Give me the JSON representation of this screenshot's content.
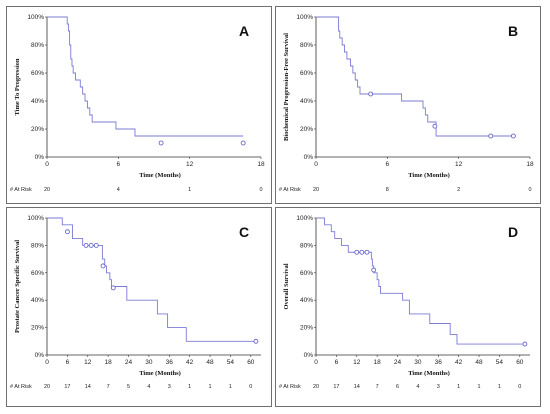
{
  "colors": {
    "curve": "#7b7bd6",
    "censor": "#5555cc",
    "axis": "#333333",
    "panel_border": "#707070"
  },
  "chart_data": [
    {
      "type": "line",
      "letter": "A",
      "ylabel": "Time To Progression",
      "xlabel": "Time (Months)",
      "xlim": [
        0,
        18
      ],
      "xticks": [
        0,
        6,
        12,
        18
      ],
      "ylim": [
        0,
        100
      ],
      "yticks": [
        "0%",
        "20%",
        "40%",
        "60%",
        "80%",
        "100%"
      ],
      "steps": [
        [
          0,
          100
        ],
        [
          1.6,
          100
        ],
        [
          1.7,
          95
        ],
        [
          1.8,
          90
        ],
        [
          1.9,
          80
        ],
        [
          2.0,
          70
        ],
        [
          2.1,
          65
        ],
        [
          2.2,
          60
        ],
        [
          2.4,
          55
        ],
        [
          2.8,
          50
        ],
        [
          3.0,
          45
        ],
        [
          3.2,
          40
        ],
        [
          3.4,
          35
        ],
        [
          3.6,
          30
        ],
        [
          3.8,
          25
        ],
        [
          5.6,
          25
        ],
        [
          5.8,
          20
        ],
        [
          7.0,
          20
        ],
        [
          7.4,
          15
        ],
        [
          18,
          15
        ]
      ],
      "steps_end": 16.5,
      "censored": [
        [
          9.6,
          10
        ],
        [
          16.5,
          10
        ]
      ],
      "risk_label": "# At Risk",
      "risk_values": [
        "20",
        "4",
        "1",
        "0"
      ]
    },
    {
      "type": "line",
      "letter": "B",
      "ylabel": "Biochemical Progression-Free Survival",
      "xlabel": "Time (Months)",
      "xlim": [
        0,
        18
      ],
      "xticks": [
        0,
        6,
        12,
        18
      ],
      "ylim": [
        0,
        100
      ],
      "yticks": [
        "0%",
        "20%",
        "40%",
        "60%",
        "80%",
        "100%"
      ],
      "steps": [
        [
          0,
          100
        ],
        [
          1.8,
          100
        ],
        [
          1.9,
          90
        ],
        [
          2.0,
          85
        ],
        [
          2.2,
          80
        ],
        [
          2.4,
          75
        ],
        [
          2.6,
          70
        ],
        [
          2.9,
          65
        ],
        [
          3.1,
          60
        ],
        [
          3.3,
          55
        ],
        [
          3.5,
          50
        ],
        [
          3.7,
          45
        ],
        [
          7.0,
          45
        ],
        [
          7.2,
          40
        ],
        [
          8.8,
          40
        ],
        [
          9.0,
          35
        ],
        [
          9.2,
          30
        ],
        [
          9.4,
          25
        ],
        [
          10.0,
          25
        ],
        [
          10.1,
          15
        ],
        [
          17,
          15
        ]
      ],
      "steps_end": 16.6,
      "censored": [
        [
          4.6,
          45
        ],
        [
          10.0,
          22
        ],
        [
          14.7,
          15
        ],
        [
          16.6,
          15
        ]
      ],
      "risk_label": "# At Risk",
      "risk_values": [
        "20",
        "8",
        "2",
        "0"
      ]
    },
    {
      "type": "line",
      "letter": "C",
      "ylabel": "Prostate Cancer Specific Survival",
      "xlabel": "Time (Months)",
      "xlim": [
        0,
        63
      ],
      "xticks": [
        0,
        6,
        12,
        18,
        24,
        30,
        36,
        42,
        48,
        54,
        60
      ],
      "ylim": [
        0,
        100
      ],
      "yticks": [
        "0%",
        "20%",
        "40%",
        "60%",
        "80%",
        "100%"
      ],
      "steps": [
        [
          0,
          100
        ],
        [
          4,
          100
        ],
        [
          4.5,
          95
        ],
        [
          7,
          95
        ],
        [
          7.5,
          85
        ],
        [
          10,
          85
        ],
        [
          10.5,
          80
        ],
        [
          16,
          80
        ],
        [
          16.3,
          70
        ],
        [
          17,
          65
        ],
        [
          17.5,
          60
        ],
        [
          18.5,
          55
        ],
        [
          19,
          50
        ],
        [
          23,
          50
        ],
        [
          23.5,
          40
        ],
        [
          32,
          40
        ],
        [
          32.5,
          30
        ],
        [
          35,
          30
        ],
        [
          35.5,
          20
        ],
        [
          40.5,
          20
        ],
        [
          41,
          10
        ],
        [
          62,
          10
        ]
      ],
      "steps_end": 61.5,
      "censored": [
        [
          6,
          90
        ],
        [
          11.5,
          80
        ],
        [
          13,
          80
        ],
        [
          14.5,
          80
        ],
        [
          16.5,
          65
        ],
        [
          19.5,
          49
        ],
        [
          61.5,
          10
        ]
      ],
      "risk_label": "# At Risk",
      "risk_values": [
        "20",
        "17",
        "14",
        "7",
        "5",
        "4",
        "3",
        "1",
        "1",
        "1",
        "0"
      ]
    },
    {
      "type": "line",
      "letter": "D",
      "ylabel": "Overall Survival",
      "xlabel": "Time (Months)",
      "xlim": [
        0,
        63
      ],
      "xticks": [
        0,
        6,
        12,
        18,
        24,
        30,
        36,
        42,
        48,
        54,
        60
      ],
      "ylim": [
        0,
        100
      ],
      "yticks": [
        "0%",
        "20%",
        "40%",
        "60%",
        "80%",
        "100%"
      ],
      "steps": [
        [
          0,
          100
        ],
        [
          2,
          100
        ],
        [
          2.5,
          95
        ],
        [
          4,
          95
        ],
        [
          4.5,
          90
        ],
        [
          5.5,
          85
        ],
        [
          7.5,
          80
        ],
        [
          9.5,
          75
        ],
        [
          16,
          75
        ],
        [
          16.3,
          70
        ],
        [
          16.6,
          65
        ],
        [
          17,
          60
        ],
        [
          18,
          55
        ],
        [
          18.5,
          50
        ],
        [
          19,
          45
        ],
        [
          25,
          45
        ],
        [
          25.5,
          40
        ],
        [
          27,
          40
        ],
        [
          27.5,
          30
        ],
        [
          33,
          30
        ],
        [
          33.5,
          23
        ],
        [
          39,
          23
        ],
        [
          39.5,
          15
        ],
        [
          41,
          15
        ],
        [
          41.5,
          8
        ],
        [
          62,
          8
        ]
      ],
      "steps_end": 61.5,
      "censored": [
        [
          12,
          75
        ],
        [
          13.5,
          75
        ],
        [
          15,
          75
        ],
        [
          17,
          62
        ],
        [
          61.5,
          8
        ]
      ],
      "risk_label": "# At Risk",
      "risk_values": [
        "20",
        "17",
        "14",
        "7",
        "6",
        "4",
        "3",
        "1",
        "1",
        "1",
        "0"
      ]
    }
  ]
}
